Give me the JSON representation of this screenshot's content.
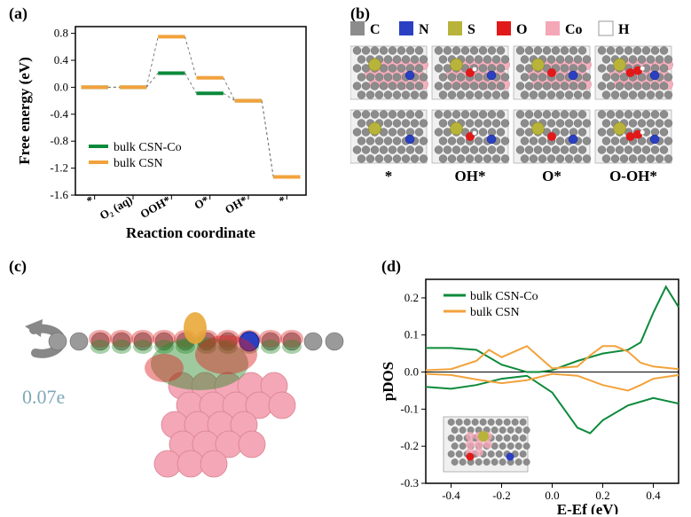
{
  "panels": {
    "a": {
      "label": "(a)",
      "ylabel": "Free energy (eV)",
      "xlabel": "Reaction coordinate",
      "xticks": [
        "*",
        "O₂ (aq)",
        "OOH*",
        "O*",
        "OH*",
        "*"
      ],
      "yticks": [
        -1.6,
        -1.2,
        -0.8,
        -0.4,
        0.0,
        0.4,
        0.8
      ],
      "ylim": [
        -1.6,
        0.9
      ],
      "series": {
        "csn_co": {
          "label": "bulk CSN-Co",
          "color": "#0b8a3a",
          "values": [
            0.0,
            0.0,
            0.21,
            -0.09,
            -0.2,
            -1.33
          ]
        },
        "csn": {
          "label": "bulk CSN",
          "color": "#f2a23c",
          "values": [
            0.0,
            0.0,
            0.75,
            0.14,
            -0.2,
            -1.33
          ]
        }
      },
      "line_width": 4,
      "dash_color": "#777777"
    },
    "b": {
      "label": "(b)",
      "legend": [
        {
          "name": "C",
          "color": "#8c8c8c"
        },
        {
          "name": "N",
          "color": "#2b3fc2"
        },
        {
          "name": "S",
          "color": "#b8b33a"
        },
        {
          "name": "O",
          "color": "#e11919"
        },
        {
          "name": "Co",
          "color": "#f4a7b6"
        },
        {
          "name": "H",
          "color": "#ffffff"
        }
      ],
      "structure_labels": [
        "*",
        "OH*",
        "O*",
        "O-OH*"
      ]
    },
    "c": {
      "label": "(c)",
      "charge_label": "0.07e",
      "charge_color": "#7fa8b8"
    },
    "d": {
      "label": "(d)",
      "ylabel": "pDOS",
      "xlabel": "E-Ef (eV)",
      "xticks": [
        -0.4,
        -0.2,
        0.0,
        0.2,
        0.4
      ],
      "yticks": [
        -0.3,
        -0.2,
        -0.1,
        0.0,
        0.1,
        0.2
      ],
      "xlim": [
        -0.5,
        0.5
      ],
      "ylim": [
        -0.3,
        0.25
      ],
      "series": {
        "csn_co": {
          "label": "bulk CSN-Co",
          "color": "#0b8a3a",
          "up": [
            [
              -0.5,
              0.065
            ],
            [
              -0.4,
              0.065
            ],
            [
              -0.3,
              0.06
            ],
            [
              -0.2,
              0.02
            ],
            [
              -0.1,
              0.0
            ],
            [
              -0.05,
              0.0
            ],
            [
              0.0,
              0.005
            ],
            [
              0.1,
              0.03
            ],
            [
              0.2,
              0.05
            ],
            [
              0.3,
              0.06
            ],
            [
              0.35,
              0.08
            ],
            [
              0.4,
              0.16
            ],
            [
              0.45,
              0.23
            ],
            [
              0.5,
              0.175
            ]
          ],
          "down": [
            [
              -0.5,
              -0.04
            ],
            [
              -0.4,
              -0.045
            ],
            [
              -0.3,
              -0.035
            ],
            [
              -0.2,
              -0.018
            ],
            [
              -0.1,
              -0.01
            ],
            [
              0.0,
              -0.055
            ],
            [
              0.1,
              -0.15
            ],
            [
              0.15,
              -0.165
            ],
            [
              0.2,
              -0.13
            ],
            [
              0.3,
              -0.09
            ],
            [
              0.4,
              -0.07
            ],
            [
              0.5,
              -0.085
            ]
          ]
        },
        "csn": {
          "label": "bulk CSN",
          "color": "#f2a23c",
          "up": [
            [
              -0.5,
              0.005
            ],
            [
              -0.4,
              0.008
            ],
            [
              -0.3,
              0.03
            ],
            [
              -0.25,
              0.06
            ],
            [
              -0.2,
              0.04
            ],
            [
              -0.15,
              0.055
            ],
            [
              -0.1,
              0.07
            ],
            [
              -0.05,
              0.04
            ],
            [
              0.0,
              0.01
            ],
            [
              0.1,
              0.015
            ],
            [
              0.15,
              0.045
            ],
            [
              0.2,
              0.07
            ],
            [
              0.25,
              0.07
            ],
            [
              0.3,
              0.055
            ],
            [
              0.35,
              0.025
            ],
            [
              0.4,
              0.015
            ],
            [
              0.5,
              0.008
            ]
          ],
          "down": [
            [
              -0.5,
              -0.005
            ],
            [
              -0.4,
              -0.008
            ],
            [
              -0.3,
              -0.02
            ],
            [
              -0.2,
              -0.03
            ],
            [
              -0.1,
              -0.022
            ],
            [
              0.0,
              -0.005
            ],
            [
              0.1,
              -0.01
            ],
            [
              0.2,
              -0.035
            ],
            [
              0.3,
              -0.05
            ],
            [
              0.35,
              -0.035
            ],
            [
              0.4,
              -0.018
            ],
            [
              0.5,
              -0.008
            ]
          ]
        }
      },
      "line_width": 2
    }
  },
  "colors": {
    "background": "#ffffff",
    "axis": "#000000",
    "text": "#000000"
  }
}
